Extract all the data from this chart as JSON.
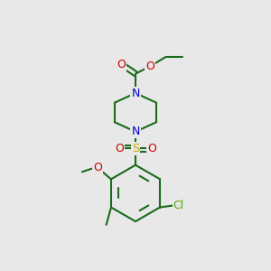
{
  "bg_color": "#e8e8e8",
  "bond_color": "#1a6b1a",
  "bond_lw": 1.5,
  "colors": {
    "N": "#0000cc",
    "O": "#cc0000",
    "S": "#ccaa00",
    "Cl": "#55aa00",
    "bg": "#e8e8e8"
  }
}
